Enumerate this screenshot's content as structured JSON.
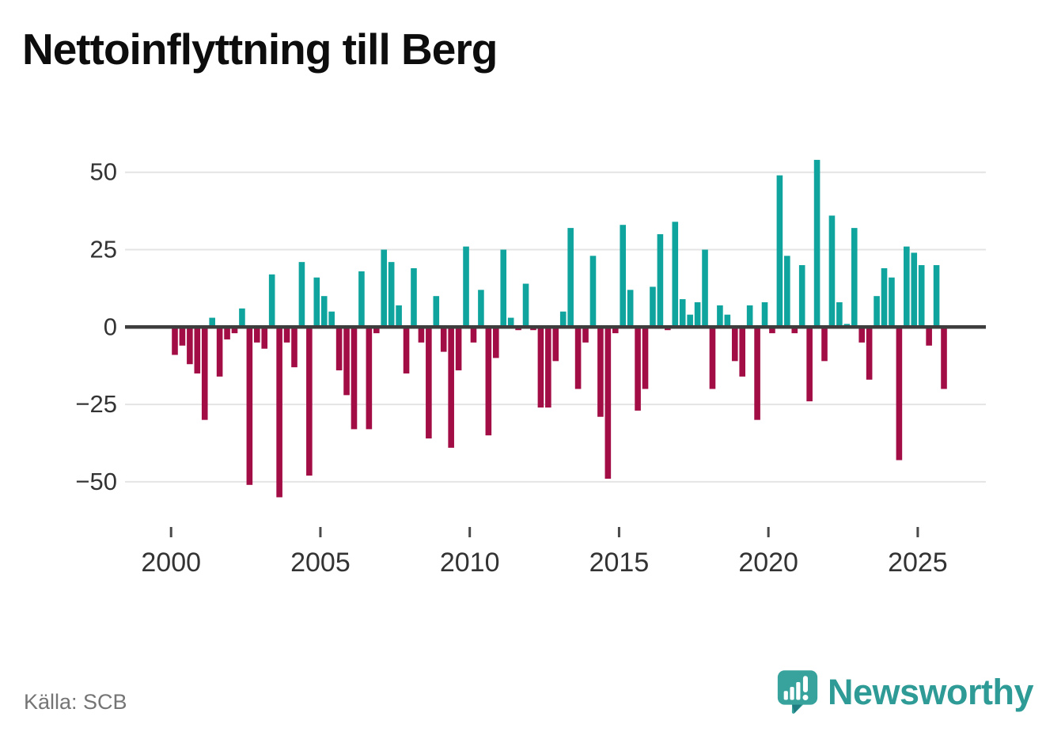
{
  "title": "Nettoinflyttning till Berg",
  "source": "Källa: SCB",
  "brand": "Newsworthy",
  "colors": {
    "positive_bar": "#10A49E",
    "negative_bar": "#A30D45",
    "zero_axis": "#3d3d3d",
    "gridline": "#e4e4e4",
    "axis_label": "#333333",
    "x_tick": "#4a4a4a",
    "source_text": "#757575",
    "brand_teal": "#2E9B96",
    "logo_bubble": "#38A39C",
    "logo_shadow": "#1f7d82"
  },
  "chart_data": {
    "type": "bar",
    "title": "Nettoinflyttning till Berg",
    "frequency": "quarterly",
    "start_year": 2000,
    "end_label": "2025Q4",
    "values": [
      -9,
      -6,
      -12,
      -15,
      -30,
      3,
      -16,
      -4,
      -2,
      6,
      -51,
      -5,
      -7,
      17,
      -55,
      -5,
      -13,
      21,
      -48,
      16,
      10,
      5,
      -14,
      -22,
      -33,
      18,
      -33,
      -2,
      25,
      21,
      7,
      -15,
      19,
      -5,
      -36,
      10,
      -8,
      -39,
      -14,
      26,
      -5,
      12,
      -35,
      -10,
      25,
      3,
      -1,
      14,
      -1,
      -26,
      -26,
      -11,
      5,
      32,
      -20,
      -5,
      23,
      -29,
      -49,
      -2,
      33,
      12,
      -27,
      -20,
      13,
      30,
      -1,
      34,
      9,
      4,
      8,
      25,
      -20,
      7,
      4,
      -11,
      -16,
      7,
      -30,
      8,
      -2,
      49,
      23,
      -2,
      20,
      -24,
      54,
      -11,
      36,
      8,
      1,
      32,
      -5,
      -17,
      10,
      19,
      16,
      -43,
      26,
      24,
      20,
      -6,
      20,
      -20
    ],
    "x_tick_labels": [
      "2000",
      "2005",
      "2010",
      "2015",
      "2020",
      "2025"
    ],
    "y_ticks": [
      50,
      25,
      0,
      -25,
      -50
    ],
    "ylim": [
      -58,
      57
    ],
    "grid": true,
    "legend": false
  }
}
